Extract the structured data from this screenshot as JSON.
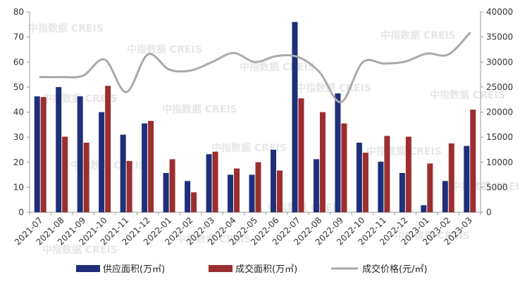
{
  "chart_data": {
    "type": "bar+line",
    "categories": [
      "2021-07",
      "2021-08",
      "2021-09",
      "2021-10",
      "2021-11",
      "2021-12",
      "2022-01",
      "2022-02",
      "2022-03",
      "2022-04",
      "2022-05",
      "2022-06",
      "2022-07",
      "2022-08",
      "2022-09",
      "2022-10",
      "2022-11",
      "2022-12",
      "2023-01",
      "2023-02",
      "2023-03"
    ],
    "series": [
      {
        "name": "供应面积(万㎡)",
        "type": "bar",
        "axis": "left",
        "color": "#1f2f7a",
        "values": [
          46.3,
          50.0,
          46.3,
          40.0,
          31.0,
          35.5,
          15.7,
          12.5,
          23.2,
          15.0,
          15.0,
          25.0,
          76.0,
          21.2,
          47.5,
          27.8,
          20.2,
          15.7,
          2.8,
          12.5,
          26.5
        ]
      },
      {
        "name": "成交面积(万㎡)",
        "type": "bar",
        "axis": "left",
        "color": "#9b2f2f",
        "values": [
          46.0,
          30.2,
          27.8,
          50.5,
          20.5,
          36.5,
          21.2,
          8.0,
          24.2,
          17.5,
          20.0,
          16.7,
          45.5,
          40.0,
          35.5,
          23.8,
          30.5,
          30.2,
          19.5,
          27.5,
          41.0
        ]
      },
      {
        "name": "成交价格(元/㎡)",
        "type": "line",
        "axis": "right",
        "color": "#a9a9a9",
        "values": [
          27000,
          27000,
          27300,
          30500,
          24000,
          31500,
          28500,
          28300,
          30000,
          31800,
          30000,
          31200,
          31000,
          28000,
          22000,
          29900,
          29700,
          30100,
          31700,
          31500,
          35800
        ]
      }
    ],
    "left_axis": {
      "min": 0,
      "max": 80,
      "ticks": [
        0,
        10,
        20,
        30,
        40,
        50,
        60,
        70,
        80
      ]
    },
    "right_axis": {
      "min": 0,
      "max": 40000,
      "ticks": [
        0,
        5000,
        10000,
        15000,
        20000,
        25000,
        30000,
        35000,
        40000
      ]
    },
    "legend_position": "bottom",
    "grid": false
  },
  "watermark": "中指数据 CREIS"
}
